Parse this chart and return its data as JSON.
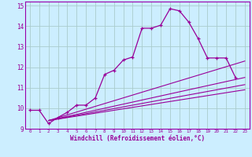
{
  "xlabel": "Windchill (Refroidissement éolien,°C)",
  "background_color": "#cceeff",
  "grid_color": "#aacccc",
  "line_color": "#990099",
  "spine_color": "#9900aa",
  "xlim": [
    -0.5,
    23.5
  ],
  "ylim": [
    9,
    15.2
  ],
  "yticks": [
    9,
    10,
    11,
    12,
    13,
    14,
    15
  ],
  "xticks": [
    0,
    1,
    2,
    3,
    4,
    5,
    6,
    7,
    8,
    9,
    10,
    11,
    12,
    13,
    14,
    15,
    16,
    17,
    18,
    19,
    20,
    21,
    22,
    23
  ],
  "main_x": [
    0,
    1,
    2,
    3,
    4,
    5,
    6,
    7,
    8,
    9,
    10,
    11,
    12,
    13,
    14,
    15,
    16,
    17,
    18,
    19,
    20,
    21,
    22
  ],
  "main_y": [
    9.9,
    9.9,
    9.25,
    9.55,
    9.8,
    10.15,
    10.15,
    10.5,
    11.65,
    11.85,
    12.35,
    12.5,
    13.9,
    13.9,
    14.05,
    14.85,
    14.75,
    14.2,
    13.4,
    12.45,
    12.45,
    12.45,
    11.5
  ],
  "line2_x": [
    2,
    23
  ],
  "line2_y": [
    9.4,
    11.5
  ],
  "line3_x": [
    2,
    23
  ],
  "line3_y": [
    9.4,
    11.15
  ],
  "line4_x": [
    2,
    23
  ],
  "line4_y": [
    9.4,
    10.9
  ],
  "line5_x": [
    2,
    23
  ],
  "line5_y": [
    9.4,
    12.3
  ]
}
